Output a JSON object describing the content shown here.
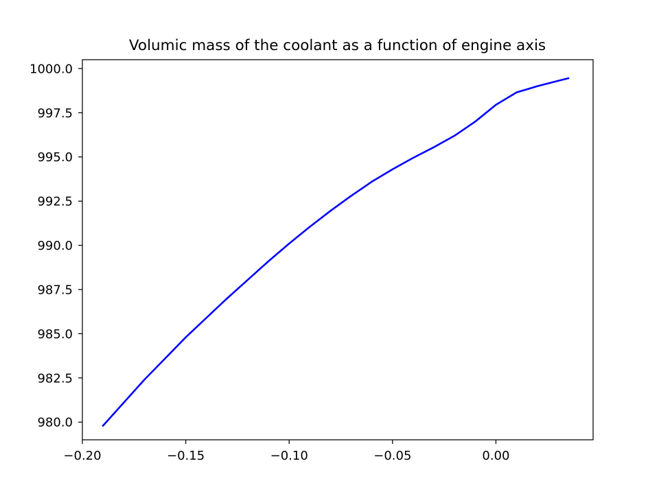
{
  "chart_data": {
    "type": "line",
    "title": "Volumic mass of the coolant as a function of engine axis",
    "xlabel": "",
    "ylabel": "",
    "xlim": [
      -0.2,
      0.047
    ],
    "ylim": [
      979.0,
      1000.5
    ],
    "xticks": [
      -0.2,
      -0.15,
      -0.1,
      -0.05,
      0.0
    ],
    "xtick_labels": [
      "−0.20",
      "−0.15",
      "−0.10",
      "−0.05",
      "0.00"
    ],
    "yticks": [
      980.0,
      982.5,
      985.0,
      987.5,
      990.0,
      992.5,
      995.0,
      997.5,
      1000.0
    ],
    "ytick_labels": [
      "980.0",
      "982.5",
      "985.0",
      "987.5",
      "990.0",
      "992.5",
      "995.0",
      "997.5",
      "1000.0"
    ],
    "grid": false,
    "series": [
      {
        "color": "#0000ff",
        "x": [
          -0.19,
          -0.18,
          -0.17,
          -0.16,
          -0.15,
          -0.14,
          -0.13,
          -0.12,
          -0.11,
          -0.1,
          -0.09,
          -0.08,
          -0.07,
          -0.06,
          -0.05,
          -0.04,
          -0.03,
          -0.02,
          -0.01,
          0.0,
          0.01,
          0.02,
          0.03,
          0.035
        ],
        "y": [
          979.8,
          981.1,
          982.4,
          983.6,
          984.8,
          985.9,
          987.0,
          988.05,
          989.1,
          990.1,
          991.05,
          991.95,
          992.8,
          993.6,
          994.3,
          994.95,
          995.55,
          996.2,
          997.0,
          997.95,
          998.65,
          999.0,
          999.3,
          999.45
        ]
      }
    ]
  }
}
